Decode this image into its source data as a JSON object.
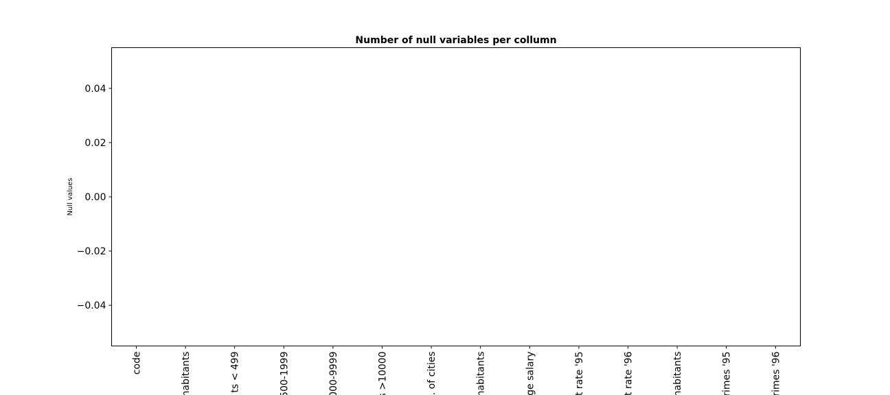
{
  "chart_data": {
    "type": "bar",
    "title": "Number of null variables per collumn",
    "xlabel": "",
    "ylabel": "Null values",
    "ylim": [
      -0.055,
      0.055
    ],
    "yticks": [
      0.04,
      0.02,
      0.0,
      -0.02,
      -0.04
    ],
    "ytick_labels": [
      "0.04",
      "0.02",
      "0.00",
      "−0.02",
      "−0.04"
    ],
    "categories": [
      "code",
      "habitants",
      "ts < 499",
      "500-1999",
      "000-9999",
      "s >10000",
      ". of cities",
      "habitants",
      "ge salary",
      "t rate '95",
      "t rate '96",
      "habitants",
      "rimes '95",
      "rimes '96"
    ],
    "values": [
      0,
      0,
      0,
      0,
      0,
      0,
      0,
      0,
      0,
      0,
      0,
      0,
      0,
      0
    ],
    "grid": false,
    "colors": {
      "bar": "#1f77b4",
      "axis": "#000000"
    }
  }
}
